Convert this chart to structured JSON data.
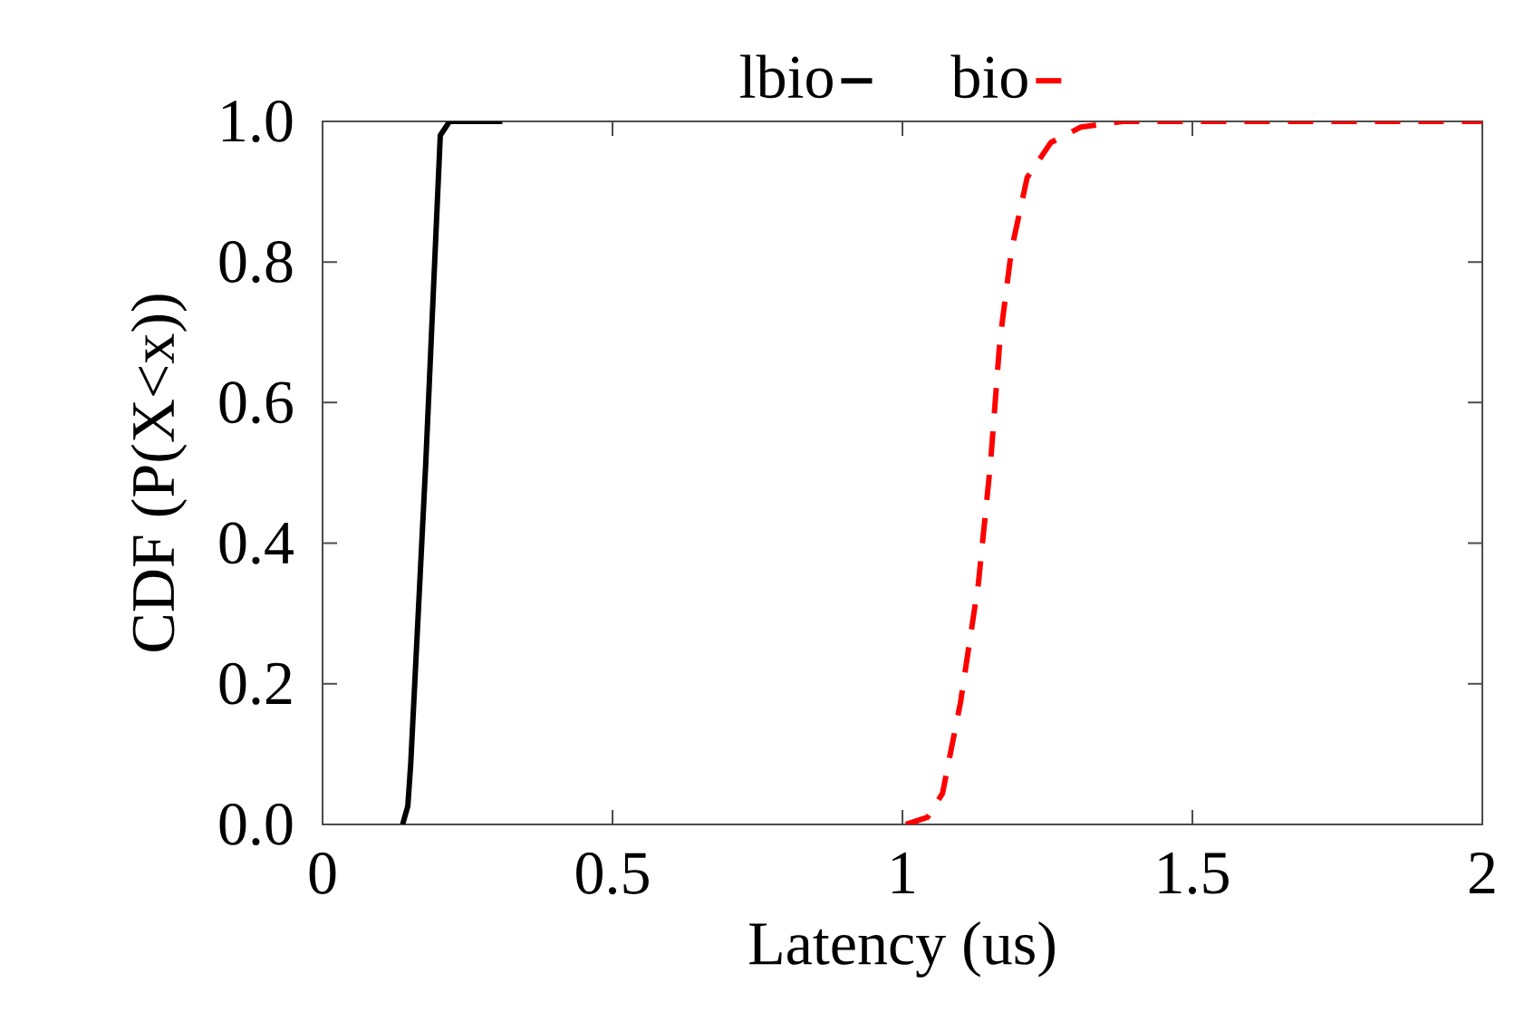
{
  "chart_data": {
    "type": "line",
    "xlabel": "Latency (us)",
    "ylabel": "CDF (P(X<x))",
    "xlim": [
      0,
      2
    ],
    "ylim": [
      0,
      1
    ],
    "xticks": [
      0,
      0.5,
      1,
      1.5,
      2
    ],
    "yticks": [
      {
        "value": 0,
        "label": "0.0"
      },
      {
        "value": 0.2,
        "label": "0.2"
      },
      {
        "value": 0.4,
        "label": "0.4"
      },
      {
        "value": 0.6,
        "label": "0.6"
      },
      {
        "value": 0.8,
        "label": "0.8"
      },
      {
        "value": 1,
        "label": "1.0"
      }
    ],
    "legend": "top",
    "grid": false,
    "marker": "none",
    "series": [
      {
        "name": "lbio",
        "color": "#000000",
        "line_style": "solid",
        "x": [
          0.138,
          0.147,
          0.152,
          0.178,
          0.203,
          0.219,
          0.31
        ],
        "values": [
          0,
          0.026,
          0.086,
          0.515,
          0.98,
          1,
          1
        ]
      },
      {
        "name": "bio",
        "color": "#ff0000",
        "line_style": "dashed",
        "x": [
          1.006,
          1.043,
          1.069,
          1.1,
          1.131,
          1.152,
          1.168,
          1.188,
          1.215,
          1.256,
          1.308,
          1.38,
          2
        ],
        "values": [
          0,
          0.01,
          0.044,
          0.173,
          0.343,
          0.515,
          0.688,
          0.817,
          0.92,
          0.97,
          0.992,
          1,
          1
        ]
      }
    ]
  }
}
